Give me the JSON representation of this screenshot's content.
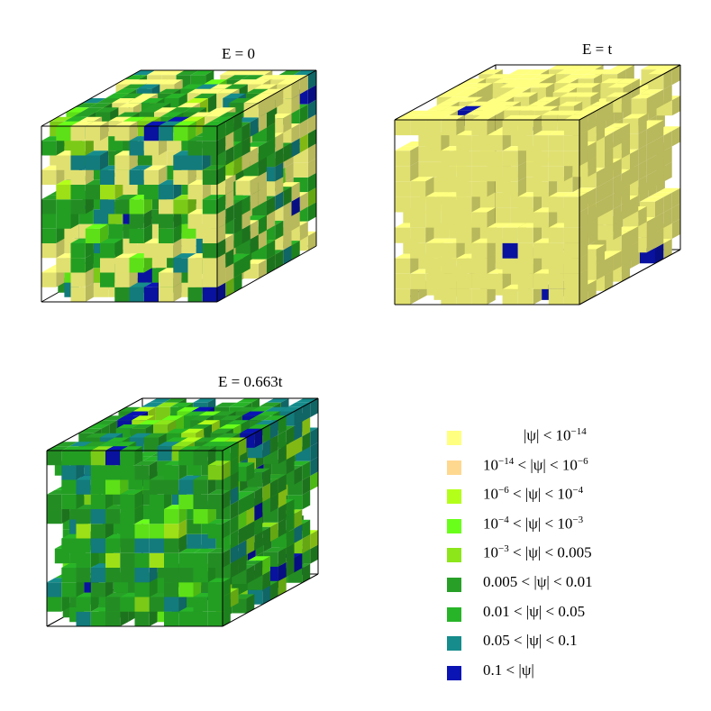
{
  "panels": [
    {
      "title": "E = 0",
      "mix": [
        0.42,
        0,
        0.02,
        0.03,
        0.03,
        0.22,
        0.18,
        0.07,
        0.03
      ]
    },
    {
      "title": "E = t",
      "mix": [
        0.99,
        0,
        0,
        0,
        0,
        0,
        0,
        0,
        0.01
      ]
    },
    {
      "title": "E = 0.663t",
      "mix": [
        0,
        0,
        0.04,
        0.05,
        0.08,
        0.35,
        0.36,
        0.08,
        0.04
      ]
    }
  ],
  "legend": [
    {
      "color": "#ffff80",
      "lower": "",
      "op1": "",
      "upper": "10",
      "upper_exp": "−14"
    },
    {
      "color": "#ffd890",
      "lower": "10",
      "lower_exp": "−14",
      "op1": "<",
      "upper": "10",
      "upper_exp": "−6"
    },
    {
      "color": "#b4ff1a",
      "lower": "10",
      "lower_exp": "−6",
      "op1": "<",
      "upper": "10",
      "upper_exp": "−4"
    },
    {
      "color": "#6aff1a",
      "lower": "10",
      "lower_exp": "−4",
      "op1": "<",
      "upper": "10",
      "upper_exp": "−3"
    },
    {
      "color": "#8ce61a",
      "lower": "10",
      "lower_exp": "−3",
      "op1": "<",
      "upper": "0.005",
      "upper_exp": ""
    },
    {
      "color": "#28a028",
      "lower": "0.005",
      "lower_exp": "",
      "op1": "<",
      "upper": "0.01",
      "upper_exp": ""
    },
    {
      "color": "#28b428",
      "lower": "0.01",
      "lower_exp": "",
      "op1": "<",
      "upper": "0.05",
      "upper_exp": ""
    },
    {
      "color": "#168c8c",
      "lower": "0.05",
      "lower_exp": "",
      "op1": "<",
      "upper": "0.1",
      "upper_exp": ""
    },
    {
      "color": "#0a14b4",
      "lower": "0.1",
      "lower_exp": "",
      "op1": "<",
      "upper": "",
      "upper_exp": ""
    }
  ],
  "psi_label": "|ψ|",
  "lt": "<"
}
